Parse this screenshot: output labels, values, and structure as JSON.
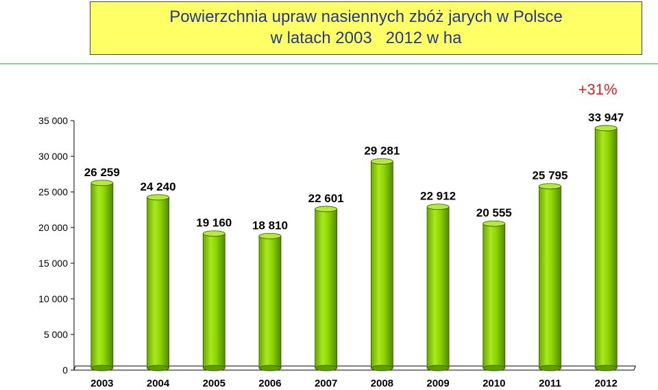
{
  "chart_data": {
    "type": "bar",
    "title": "Powierzchnia upraw nasiennych zbóż jarych w Polsce",
    "subtitle": "w latach 2003   2012 w ha",
    "annotation": "+31%",
    "categories": [
      "2003",
      "2004",
      "2005",
      "2006",
      "2007",
      "2008",
      "2009",
      "2010",
      "2011",
      "2012"
    ],
    "values": [
      26259,
      24240,
      19160,
      18810,
      22601,
      29281,
      22912,
      20555,
      25795,
      33947
    ],
    "value_labels": [
      "26 259",
      "24 240",
      "19 160",
      "18 810",
      "22 601",
      "29 281",
      "22 912",
      "20 555",
      "25 795",
      "33 947"
    ],
    "ylim": [
      0,
      35000
    ],
    "yticks": [
      0,
      5000,
      10000,
      15000,
      20000,
      25000,
      30000,
      35000
    ],
    "ytick_labels": [
      "0",
      "5 000",
      "10 000",
      "15 000",
      "20 000",
      "25 000",
      "30 000",
      "35 000"
    ],
    "bar_style": "cylinder",
    "grid": false,
    "colors": {
      "bar": "#8ed400",
      "bar_dark": "#4f8a00",
      "bar_light": "#c8f060",
      "title_bg": "#ffff66",
      "title_text": "#1f3a8a",
      "annotation": "#d42020"
    }
  }
}
